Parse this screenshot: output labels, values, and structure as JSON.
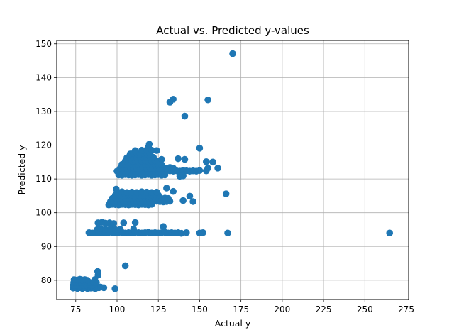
{
  "chart_data": {
    "type": "scatter",
    "title": "Actual vs. Predicted y-values",
    "xlabel": "Actual y",
    "ylabel": "Predicted y",
    "xlim": [
      63.5,
      276.5
    ],
    "ylim": [
      74.3,
      151.0
    ],
    "xticks": [
      75,
      100,
      125,
      150,
      175,
      200,
      225,
      250,
      275
    ],
    "yticks": [
      80,
      90,
      100,
      110,
      120,
      130,
      140,
      150
    ],
    "grid": true,
    "marker_color": "#1f77b4",
    "points": [
      [
        73.5,
        77.7
      ],
      [
        74.2,
        78.0
      ],
      [
        75,
        77.8
      ],
      [
        76,
        77.6
      ],
      [
        77,
        77.9
      ],
      [
        78,
        77.8
      ],
      [
        79,
        77.6
      ],
      [
        80,
        77.8
      ],
      [
        81,
        77.9
      ],
      [
        82,
        77.6
      ],
      [
        83,
        77.8
      ],
      [
        84,
        77.7
      ],
      [
        85,
        77.9
      ],
      [
        86,
        77.7
      ],
      [
        87,
        77.6
      ],
      [
        88,
        77.9
      ],
      [
        89,
        77.8
      ],
      [
        73.6,
        78.6
      ],
      [
        75.5,
        78.5
      ],
      [
        77.5,
        78.4
      ],
      [
        79.5,
        78.6
      ],
      [
        81.5,
        78.5
      ],
      [
        83.5,
        78.6
      ],
      [
        85,
        78.5
      ],
      [
        73.8,
        79.3
      ],
      [
        75.2,
        79.5
      ],
      [
        76.8,
        79.4
      ],
      [
        78.5,
        79.3
      ],
      [
        80.2,
        79.5
      ],
      [
        82,
        79.4
      ],
      [
        84,
        79.3
      ],
      [
        86,
        79.4
      ],
      [
        87.5,
        79.3
      ],
      [
        74,
        80.2
      ],
      [
        76,
        80.1
      ],
      [
        77.5,
        80.3
      ],
      [
        79,
        80.1
      ],
      [
        80.5,
        80.2
      ],
      [
        82,
        80.0
      ],
      [
        86.5,
        80.2
      ],
      [
        88.5,
        81.5
      ],
      [
        88.3,
        82.6
      ],
      [
        90,
        78.0
      ],
      [
        92,
        77.8
      ],
      [
        98.8,
        77.5
      ],
      [
        105,
        84.3
      ],
      [
        83,
        94.1
      ],
      [
        85,
        94.0
      ],
      [
        87,
        94.2
      ],
      [
        89,
        94.0
      ],
      [
        91,
        94.1
      ],
      [
        93,
        94.0
      ],
      [
        95,
        94.2
      ],
      [
        97,
        94.1
      ],
      [
        99,
        94.0
      ],
      [
        101,
        94.1
      ],
      [
        103,
        94.2
      ],
      [
        105,
        94.0
      ],
      [
        107,
        94.1
      ],
      [
        109,
        94.0
      ],
      [
        111,
        94.2
      ],
      [
        113,
        94.1
      ],
      [
        115,
        94.0
      ],
      [
        117,
        94.1
      ],
      [
        119,
        94.2
      ],
      [
        121,
        94.0
      ],
      [
        123,
        94.1
      ],
      [
        125,
        94.0
      ],
      [
        127,
        94.1
      ],
      [
        129,
        94.2
      ],
      [
        131,
        94.0
      ],
      [
        133,
        94.1
      ],
      [
        135,
        94.0
      ],
      [
        137,
        94.1
      ],
      [
        139,
        93.9
      ],
      [
        142,
        94.1
      ],
      [
        150,
        94.0
      ],
      [
        152,
        94.1
      ],
      [
        167,
        94.0
      ],
      [
        265,
        94.0
      ],
      [
        88,
        95.0
      ],
      [
        90,
        95.3
      ],
      [
        93,
        95.1
      ],
      [
        96,
        95.2
      ],
      [
        99,
        95.0
      ],
      [
        102,
        95.1
      ],
      [
        110,
        95.2
      ],
      [
        128,
        95.9
      ],
      [
        104,
        97.0
      ],
      [
        111,
        97.1
      ],
      [
        88.5,
        97.0
      ],
      [
        91,
        97.2
      ],
      [
        93,
        96.9
      ],
      [
        95.5,
        97.0
      ],
      [
        98,
        96.8
      ],
      [
        95,
        102.3
      ],
      [
        97,
        102.5
      ],
      [
        99,
        102.4
      ],
      [
        101,
        102.3
      ],
      [
        103,
        102.5
      ],
      [
        105,
        102.4
      ],
      [
        107,
        102.3
      ],
      [
        109,
        102.5
      ],
      [
        111,
        102.4
      ],
      [
        113,
        102.3
      ],
      [
        115,
        102.5
      ],
      [
        117,
        102.4
      ],
      [
        119,
        102.3
      ],
      [
        121,
        102.5
      ],
      [
        96,
        103.3
      ],
      [
        98,
        103.2
      ],
      [
        100,
        103.4
      ],
      [
        102,
        103.3
      ],
      [
        104,
        103.2
      ],
      [
        106,
        103.3
      ],
      [
        108,
        103.4
      ],
      [
        110,
        103.2
      ],
      [
        112,
        103.3
      ],
      [
        114,
        103.2
      ],
      [
        116,
        103.4
      ],
      [
        118,
        103.3
      ],
      [
        120,
        103.2
      ],
      [
        122,
        103.3
      ],
      [
        124,
        103.4
      ],
      [
        126,
        103.3
      ],
      [
        128,
        103.2
      ],
      [
        130,
        103.3
      ],
      [
        132,
        103.4
      ],
      [
        146,
        103.3
      ],
      [
        140,
        103.6
      ],
      [
        97,
        104.2
      ],
      [
        99,
        104.4
      ],
      [
        101,
        104.3
      ],
      [
        103,
        104.2
      ],
      [
        105,
        104.4
      ],
      [
        107,
        104.3
      ],
      [
        109,
        104.2
      ],
      [
        111,
        104.3
      ],
      [
        113,
        104.4
      ],
      [
        115,
        104.2
      ],
      [
        117,
        104.3
      ],
      [
        119,
        104.4
      ],
      [
        121,
        104.2
      ],
      [
        123,
        104.3
      ],
      [
        125,
        104.4
      ],
      [
        127,
        104.2
      ],
      [
        129,
        104.3
      ],
      [
        131,
        104.2
      ],
      [
        99,
        105.2
      ],
      [
        101,
        105.3
      ],
      [
        103,
        105.1
      ],
      [
        105,
        105.2
      ],
      [
        107,
        105.3
      ],
      [
        109,
        105.2
      ],
      [
        111,
        105.1
      ],
      [
        113,
        105.2
      ],
      [
        115,
        105.3
      ],
      [
        117,
        105.2
      ],
      [
        119,
        105.1
      ],
      [
        121,
        105.2
      ],
      [
        123,
        105.3
      ],
      [
        125,
        105.2
      ],
      [
        100,
        106.0
      ],
      [
        103,
        106.2
      ],
      [
        106,
        106.0
      ],
      [
        109,
        106.1
      ],
      [
        112,
        106.0
      ],
      [
        115,
        106.2
      ],
      [
        118,
        106.1
      ],
      [
        121,
        106.0
      ],
      [
        124,
        106.1
      ],
      [
        99.5,
        107.0
      ],
      [
        144,
        104.9
      ],
      [
        166,
        105.6
      ],
      [
        130,
        107.3
      ],
      [
        134,
        106.3
      ],
      [
        100,
        112.3
      ],
      [
        102,
        112.4
      ],
      [
        104,
        112.3
      ],
      [
        106,
        112.5
      ],
      [
        108,
        112.3
      ],
      [
        110,
        112.4
      ],
      [
        112,
        112.3
      ],
      [
        114,
        112.5
      ],
      [
        116,
        112.3
      ],
      [
        118,
        112.4
      ],
      [
        120,
        112.3
      ],
      [
        122,
        112.5
      ],
      [
        124,
        112.3
      ],
      [
        126,
        112.4
      ],
      [
        128,
        112.3
      ],
      [
        130,
        112.5
      ],
      [
        132,
        112.4
      ],
      [
        134,
        112.3
      ],
      [
        136,
        112.4
      ],
      [
        138,
        112.3
      ],
      [
        140,
        112.5
      ],
      [
        142,
        112.4
      ],
      [
        144,
        112.3
      ],
      [
        146,
        112.4
      ],
      [
        148,
        112.3
      ],
      [
        150,
        112.5
      ],
      [
        154,
        112.4
      ],
      [
        101,
        111.2
      ],
      [
        103,
        111.1
      ],
      [
        105,
        111.3
      ],
      [
        107,
        111.2
      ],
      [
        109,
        111.1
      ],
      [
        111,
        111.2
      ],
      [
        113,
        111.3
      ],
      [
        115,
        111.1
      ],
      [
        117,
        111.2
      ],
      [
        119,
        111.3
      ],
      [
        121,
        111.1
      ],
      [
        123,
        111.2
      ],
      [
        125,
        111.3
      ],
      [
        127,
        111.1
      ],
      [
        129,
        111.2
      ],
      [
        102,
        113.2
      ],
      [
        104,
        113.3
      ],
      [
        106,
        113.2
      ],
      [
        108,
        113.4
      ],
      [
        110,
        113.2
      ],
      [
        112,
        113.3
      ],
      [
        114,
        113.2
      ],
      [
        116,
        113.4
      ],
      [
        118,
        113.2
      ],
      [
        120,
        113.3
      ],
      [
        122,
        113.2
      ],
      [
        124,
        113.4
      ],
      [
        126,
        113.2
      ],
      [
        128,
        113.3
      ],
      [
        130,
        113.2
      ],
      [
        132,
        113.4
      ],
      [
        134,
        113.2
      ],
      [
        155,
        113.2
      ],
      [
        161,
        113.2
      ],
      [
        103,
        114.3
      ],
      [
        105,
        114.2
      ],
      [
        107,
        114.4
      ],
      [
        109,
        114.3
      ],
      [
        111,
        114.2
      ],
      [
        113,
        114.3
      ],
      [
        115,
        114.4
      ],
      [
        117,
        114.2
      ],
      [
        119,
        114.3
      ],
      [
        121,
        114.4
      ],
      [
        123,
        114.2
      ],
      [
        125,
        114.3
      ],
      [
        127,
        114.2
      ],
      [
        105,
        115.3
      ],
      [
        107,
        115.2
      ],
      [
        109,
        115.4
      ],
      [
        111,
        115.3
      ],
      [
        113,
        115.2
      ],
      [
        115,
        115.3
      ],
      [
        117,
        115.4
      ],
      [
        119,
        115.2
      ],
      [
        121,
        115.3
      ],
      [
        123,
        115.4
      ],
      [
        125,
        115.2
      ],
      [
        127,
        115.8
      ],
      [
        137,
        116.0
      ],
      [
        141,
        115.8
      ],
      [
        154,
        115.1
      ],
      [
        158,
        115.0
      ],
      [
        106,
        116.3
      ],
      [
        108,
        116.5
      ],
      [
        110,
        116.4
      ],
      [
        112,
        116.3
      ],
      [
        114,
        116.5
      ],
      [
        116,
        116.4
      ],
      [
        118,
        116.3
      ],
      [
        120,
        116.5
      ],
      [
        122,
        116.4
      ],
      [
        108,
        117.4
      ],
      [
        110,
        117.6
      ],
      [
        112,
        117.5
      ],
      [
        114,
        117.4
      ],
      [
        116,
        117.6
      ],
      [
        118,
        117.5
      ],
      [
        120,
        117.4
      ],
      [
        111,
        118.4
      ],
      [
        115,
        118.5
      ],
      [
        118,
        118.6
      ],
      [
        121,
        118.5
      ],
      [
        124,
        118.4
      ],
      [
        119,
        119.5
      ],
      [
        119.5,
        120.3
      ],
      [
        150,
        119.1
      ],
      [
        140,
        110.9
      ],
      [
        138,
        110.8
      ],
      [
        134,
        133.6
      ],
      [
        132,
        132.7
      ],
      [
        141,
        128.6
      ],
      [
        155,
        133.4
      ],
      [
        170,
        147.1
      ]
    ]
  }
}
